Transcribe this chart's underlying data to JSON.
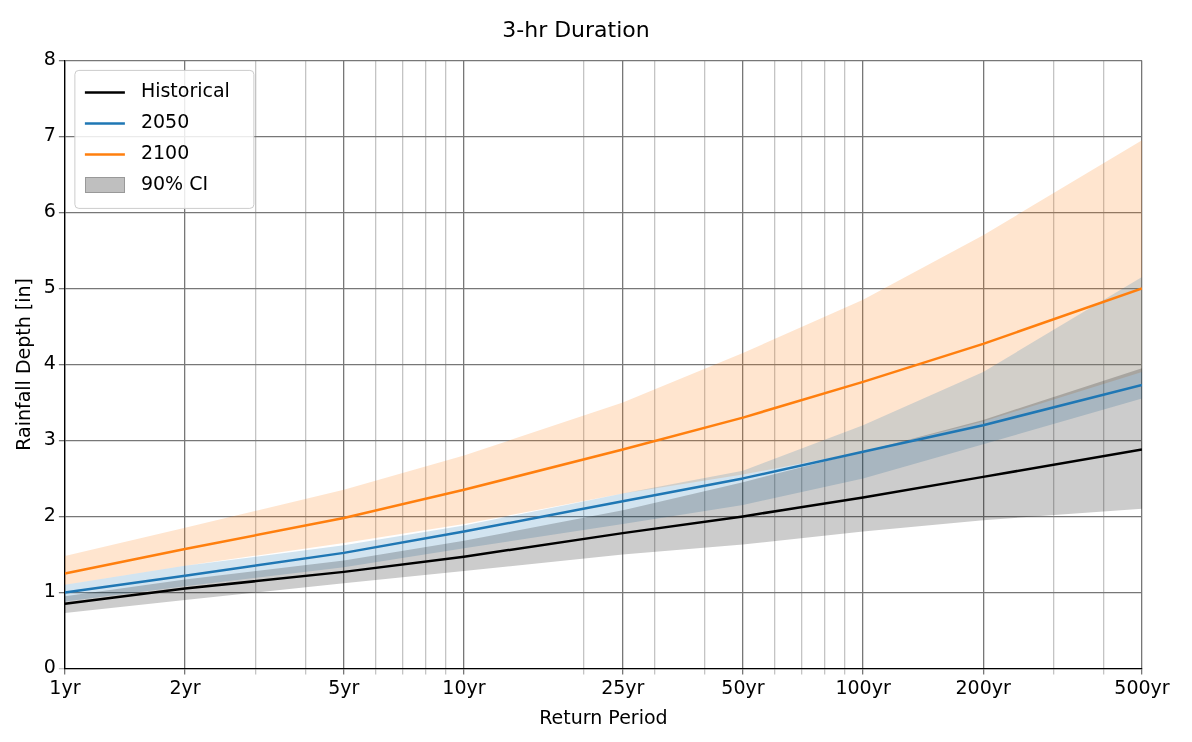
{
  "chart_data": {
    "type": "line",
    "title": "3-hr Duration",
    "xlabel": "Return Period",
    "ylabel": "Rainfall Depth [in]",
    "log": "x",
    "grid": true,
    "legend": "top left",
    "marker": "none",
    "line_style": "solid",
    "x": [
      1,
      2,
      5,
      10,
      25,
      50,
      100,
      200,
      500
    ],
    "xlim": [
      1,
      500
    ],
    "xticks": [
      {
        "value": 1,
        "label": "1yr"
      },
      {
        "value": 2,
        "label": "2yr"
      },
      {
        "value": 3,
        "label": null
      },
      {
        "value": 4,
        "label": null
      },
      {
        "value": 5,
        "label": "5yr"
      },
      {
        "value": 6,
        "label": null
      },
      {
        "value": 7,
        "label": null
      },
      {
        "value": 8,
        "label": null
      },
      {
        "value": 9,
        "label": null
      },
      {
        "value": 10,
        "label": "10yr"
      },
      {
        "value": 20,
        "label": null
      },
      {
        "value": 25,
        "label": "25yr"
      },
      {
        "value": 30,
        "label": null
      },
      {
        "value": 40,
        "label": null
      },
      {
        "value": 50,
        "label": "50yr"
      },
      {
        "value": 60,
        "label": null
      },
      {
        "value": 70,
        "label": null
      },
      {
        "value": 80,
        "label": null
      },
      {
        "value": 90,
        "label": null
      },
      {
        "value": 100,
        "label": "100yr"
      },
      {
        "value": 200,
        "label": "200yr"
      },
      {
        "value": 300,
        "label": null
      },
      {
        "value": 400,
        "label": null
      },
      {
        "value": 500,
        "label": "500yr"
      }
    ],
    "ylim": [
      0,
      8
    ],
    "yticks": [
      0,
      1,
      2,
      3,
      4,
      5,
      6,
      7,
      8
    ],
    "annotations": [
      "90% CI"
    ],
    "series": [
      {
        "name": "Historical",
        "color": "#000000",
        "values": [
          0.85,
          1.05,
          1.27,
          1.47,
          1.78,
          2.0,
          2.25,
          2.52,
          2.88
        ],
        "lower": [
          0.73,
          0.9,
          1.12,
          1.28,
          1.5,
          1.63,
          1.8,
          1.95,
          2.1
        ],
        "upper": [
          0.95,
          1.17,
          1.42,
          1.68,
          2.08,
          2.45,
          2.85,
          3.27,
          3.95
        ]
      },
      {
        "name": "2050",
        "color": "#1f77b4",
        "values": [
          1.0,
          1.22,
          1.52,
          1.8,
          2.2,
          2.5,
          2.85,
          3.2,
          3.73
        ],
        "lower": [
          0.88,
          1.08,
          1.33,
          1.58,
          1.9,
          2.15,
          2.5,
          2.95,
          3.55
        ],
        "upper": [
          1.1,
          1.35,
          1.62,
          1.88,
          2.3,
          2.6,
          3.2,
          3.9,
          5.15
        ]
      },
      {
        "name": "2100",
        "color": "#ff7f0e",
        "values": [
          1.25,
          1.57,
          1.98,
          2.35,
          2.88,
          3.3,
          3.77,
          4.27,
          5.0
        ],
        "lower": [
          1.1,
          1.35,
          1.65,
          1.9,
          2.3,
          2.55,
          2.85,
          3.25,
          3.9
        ],
        "upper": [
          1.48,
          1.85,
          2.35,
          2.8,
          3.5,
          4.15,
          4.85,
          5.7,
          6.95
        ]
      }
    ]
  }
}
